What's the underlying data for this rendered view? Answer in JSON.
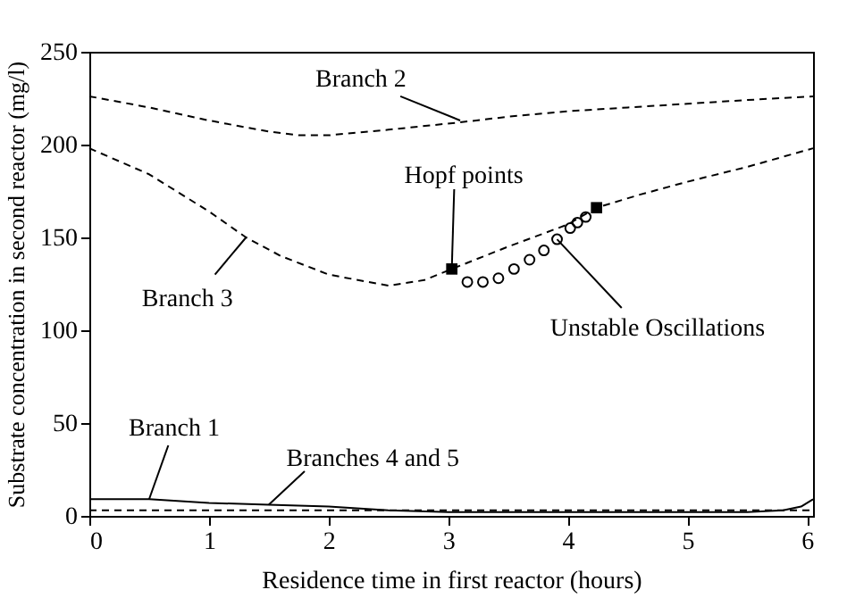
{
  "chart_data": {
    "type": "line",
    "xlabel": "Residence time in first reactor (hours)",
    "ylabel": "Substrate concentration in second reactor (mg/l)",
    "xlim": [
      0,
      6.05
    ],
    "xticks": [
      0,
      1,
      2,
      3,
      4,
      5,
      6
    ],
    "ylim": [
      0,
      250
    ],
    "yticks": [
      0,
      50,
      100,
      150,
      200,
      250
    ],
    "grid": false,
    "series": [
      {
        "color": "#000000",
        "line_style": "solid",
        "x": [
          0,
          0.5,
          1,
          1.5,
          2,
          2.5,
          3,
          3.5,
          4,
          5,
          5.5,
          5.8,
          5.95,
          6.05
        ],
        "values": [
          9,
          9,
          7,
          6,
          5,
          3,
          2,
          2,
          2,
          2,
          2,
          3,
          5,
          9
        ]
      },
      {
        "color": "#000000",
        "line_style": "dashed",
        "x": [
          0,
          1,
          2,
          3,
          4,
          5,
          6.05
        ],
        "values": [
          3,
          3,
          3,
          3,
          3,
          3,
          3
        ]
      },
      {
        "color": "#000000",
        "line_style": "dashed",
        "x": [
          0,
          0.5,
          1,
          1.5,
          1.75,
          2,
          2.5,
          3.1,
          3.5,
          4,
          4.5,
          5,
          5.5,
          6.05
        ],
        "values": [
          226,
          220,
          213,
          207,
          205,
          205,
          208,
          212,
          215,
          218,
          220,
          222,
          224,
          226
        ]
      },
      {
        "color": "#000000",
        "line_style": "dashed",
        "x": [
          0,
          0.5,
          1,
          1.31,
          1.6,
          2,
          2.5,
          2.8,
          3.03,
          3.5,
          4,
          4.24,
          4.6,
          5,
          5.5,
          6.05
        ],
        "values": [
          198,
          184,
          164,
          150,
          140,
          130,
          124,
          127,
          133,
          145,
          157,
          166,
          173,
          180,
          188,
          198
        ]
      },
      {
        "type": "scatter",
        "color": "#000000",
        "marker": "square",
        "x": [
          3.03,
          4.24
        ],
        "values": [
          133,
          166
        ]
      },
      {
        "type": "scatter",
        "color": "#000000",
        "marker": "circle",
        "x": [
          3.16,
          3.29,
          3.42,
          3.55,
          3.68,
          3.8,
          3.91,
          4.02,
          4.08,
          4.15
        ],
        "values": [
          126,
          126,
          128,
          133,
          138,
          143,
          149,
          155,
          158,
          161
        ]
      }
    ],
    "annotations": [
      {
        "text": "Branch 2",
        "x": 3.1,
        "y": 213
      },
      {
        "text": "Branch 3",
        "x": 1.31,
        "y": 150
      },
      {
        "text": "Hopf points",
        "x": 3.03,
        "y": 133
      },
      {
        "text": "Unstable Oscillations",
        "x": 3.91,
        "y": 149
      },
      {
        "text": "Branch 1",
        "x": 0.5,
        "y": 9
      },
      {
        "text": "Branches 4 and 5",
        "x": 1.5,
        "y": 6
      }
    ]
  }
}
